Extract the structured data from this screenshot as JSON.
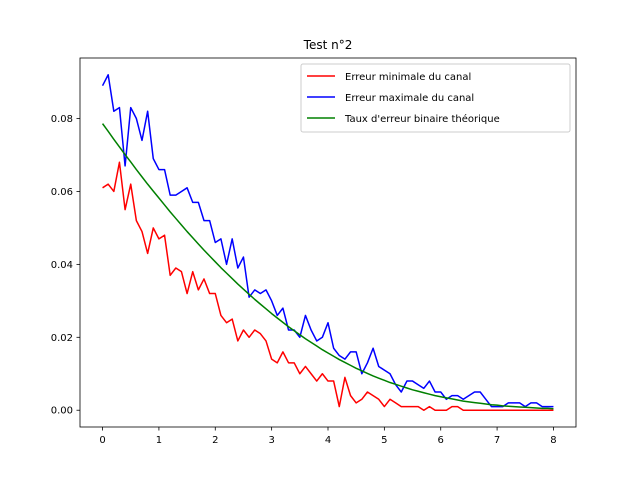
{
  "chart_data": {
    "type": "line",
    "title": "Test n°2",
    "xlabel": "",
    "ylabel": "",
    "xlim": [
      -0.4,
      8.4
    ],
    "ylim": [
      -0.0046,
      0.0966
    ],
    "xticks": [
      0,
      1,
      2,
      3,
      4,
      5,
      6,
      7,
      8
    ],
    "xtick_labels": [
      "0",
      "1",
      "2",
      "3",
      "4",
      "5",
      "6",
      "7",
      "8"
    ],
    "yticks": [
      0.0,
      0.02,
      0.04,
      0.06,
      0.08
    ],
    "ytick_labels": [
      "0.00",
      "0.02",
      "0.04",
      "0.06",
      "0.08"
    ],
    "grid": false,
    "legend_position": "top-right",
    "x": [
      0,
      0.1,
      0.2,
      0.3,
      0.4,
      0.5,
      0.6,
      0.7,
      0.8,
      0.9,
      1.0,
      1.1,
      1.2,
      1.3,
      1.4,
      1.5,
      1.6,
      1.7,
      1.8,
      1.9,
      2.0,
      2.1,
      2.2,
      2.3,
      2.4,
      2.5,
      2.6,
      2.7,
      2.8,
      2.9,
      3.0,
      3.1,
      3.2,
      3.3,
      3.4,
      3.5,
      3.6,
      3.7,
      3.8,
      3.9,
      4.0,
      4.1,
      4.2,
      4.3,
      4.4,
      4.5,
      4.6,
      4.7,
      4.8,
      4.9,
      5.0,
      5.1,
      5.2,
      5.3,
      5.4,
      5.5,
      5.6,
      5.7,
      5.8,
      5.9,
      6.0,
      6.1,
      6.2,
      6.3,
      6.4,
      6.5,
      6.6,
      6.7,
      6.8,
      6.9,
      7.0,
      7.1,
      7.2,
      7.3,
      7.4,
      7.5,
      7.6,
      7.7,
      7.8,
      7.9,
      8.0
    ],
    "series": [
      {
        "name": "Erreur minimale du canal",
        "color": "#ff0000",
        "values": [
          0.061,
          0.062,
          0.06,
          0.068,
          0.055,
          0.062,
          0.052,
          0.049,
          0.043,
          0.05,
          0.047,
          0.048,
          0.037,
          0.039,
          0.038,
          0.032,
          0.038,
          0.033,
          0.036,
          0.032,
          0.032,
          0.026,
          0.024,
          0.025,
          0.019,
          0.022,
          0.02,
          0.022,
          0.021,
          0.019,
          0.014,
          0.013,
          0.016,
          0.013,
          0.013,
          0.01,
          0.012,
          0.01,
          0.008,
          0.01,
          0.008,
          0.008,
          0.001,
          0.009,
          0.004,
          0.002,
          0.003,
          0.005,
          0.004,
          0.003,
          0.001,
          0.003,
          0.002,
          0.001,
          0.001,
          0.001,
          0.001,
          0.0,
          0.001,
          0.0,
          0.0,
          0.0,
          0.001,
          0.001,
          0.0,
          0.0,
          0.0,
          0.0,
          0.0,
          0.0,
          0.0,
          0.0,
          0.0,
          0.0,
          0.0,
          0.0,
          0.0,
          0.0,
          0.0,
          0.0,
          0.0
        ]
      },
      {
        "name": "Erreur maximale du canal",
        "color": "#0000ff",
        "values": [
          0.089,
          0.092,
          0.082,
          0.083,
          0.067,
          0.083,
          0.08,
          0.074,
          0.082,
          0.069,
          0.066,
          0.066,
          0.059,
          0.059,
          0.06,
          0.061,
          0.057,
          0.057,
          0.052,
          0.052,
          0.046,
          0.047,
          0.04,
          0.047,
          0.039,
          0.042,
          0.031,
          0.033,
          0.032,
          0.033,
          0.03,
          0.026,
          0.028,
          0.022,
          0.022,
          0.02,
          0.026,
          0.022,
          0.019,
          0.02,
          0.024,
          0.017,
          0.015,
          0.014,
          0.016,
          0.016,
          0.01,
          0.013,
          0.017,
          0.012,
          0.011,
          0.01,
          0.007,
          0.005,
          0.008,
          0.008,
          0.007,
          0.006,
          0.008,
          0.005,
          0.005,
          0.003,
          0.004,
          0.004,
          0.003,
          0.004,
          0.005,
          0.005,
          0.003,
          0.001,
          0.001,
          0.001,
          0.002,
          0.002,
          0.002,
          0.001,
          0.002,
          0.002,
          0.001,
          0.001,
          0.001
        ]
      },
      {
        "name": "Taux d'erreur binaire théorique",
        "color": "#008000",
        "values": [
          0.0786,
          0.0765,
          0.0743,
          0.0722,
          0.0701,
          0.0681,
          0.066,
          0.064,
          0.062,
          0.0601,
          0.0582,
          0.0563,
          0.0544,
          0.0526,
          0.0508,
          0.049,
          0.0473,
          0.0456,
          0.0439,
          0.0423,
          0.0407,
          0.0391,
          0.0376,
          0.0361,
          0.0346,
          0.0332,
          0.0318,
          0.0304,
          0.0291,
          0.0278,
          0.0265,
          0.0253,
          0.0241,
          0.0229,
          0.0218,
          0.0207,
          0.0196,
          0.0186,
          0.0176,
          0.0166,
          0.0157,
          0.0148,
          0.0139,
          0.0131,
          0.0123,
          0.0115,
          0.0108,
          0.0101,
          0.0094,
          0.0088,
          0.0082,
          0.0076,
          0.0071,
          0.0066,
          0.0061,
          0.0056,
          0.0052,
          0.0048,
          0.0044,
          0.004,
          0.0037,
          0.0034,
          0.0031,
          0.0028,
          0.0025,
          0.0023,
          0.0021,
          0.0019,
          0.0017,
          0.0015,
          0.0014,
          0.0012,
          0.0011,
          0.001,
          0.0009,
          0.0008,
          0.0007,
          0.0006,
          0.0005,
          0.0005,
          0.0004
        ]
      }
    ]
  }
}
